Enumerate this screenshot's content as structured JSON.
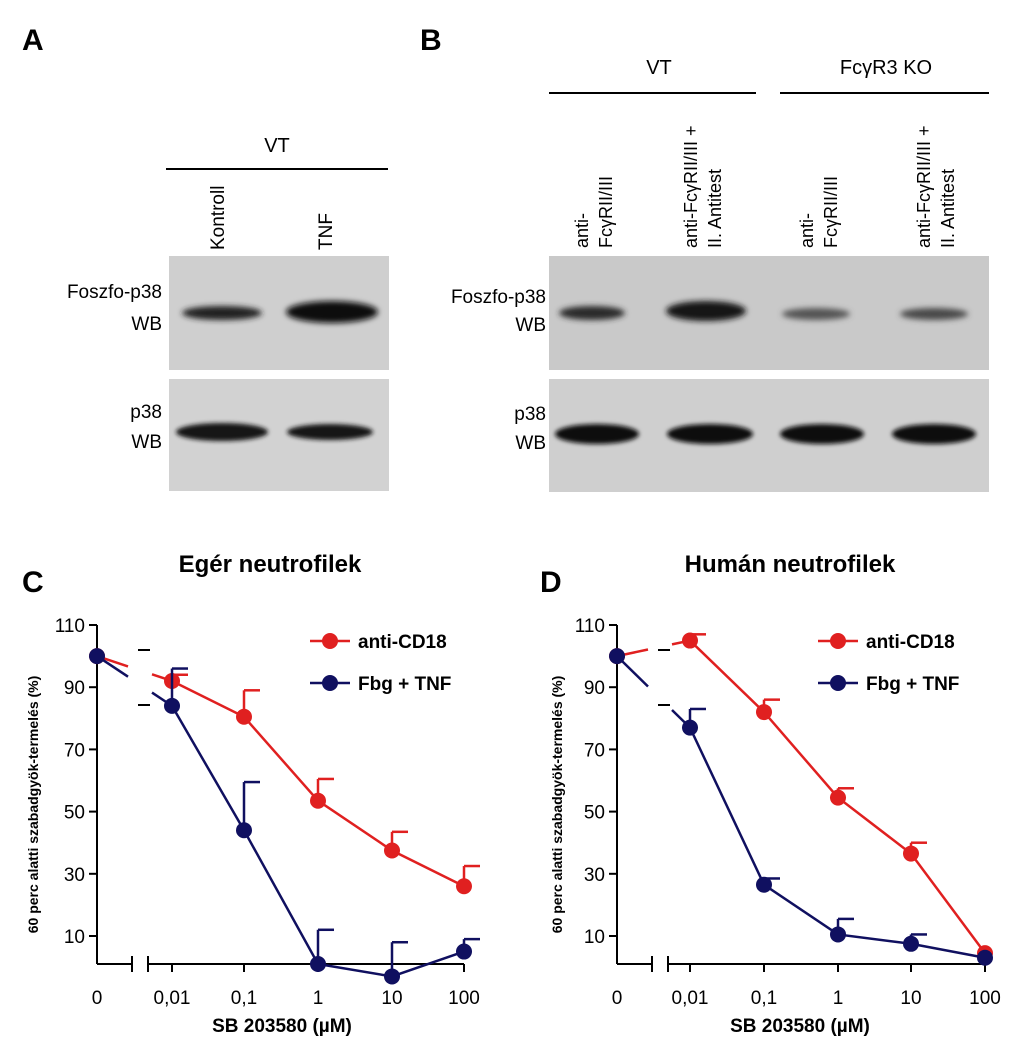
{
  "panels": {
    "A": {
      "letter": "A",
      "group_label": "VT",
      "lane_labels": [
        "Kontroll",
        "TNF"
      ],
      "row_labels": {
        "phospho_line1": "Foszfo-p38",
        "phospho_line2": "WB",
        "total_line1": "p38",
        "total_line2": "WB"
      }
    },
    "B": {
      "letter": "B",
      "group_labels": [
        "VT",
        "FcγR3 KO"
      ],
      "lane_labels": [
        {
          "line1": "anti-",
          "line2": "FcγRII/III"
        },
        {
          "line1": "anti-FcγRII/III +",
          "line2": "II. Antitest"
        },
        {
          "line1": "anti-",
          "line2": "FcγRII/III"
        },
        {
          "line1": "anti-FcγRII/III +",
          "line2": "II. Antitest"
        }
      ],
      "row_labels": {
        "phospho_line1": "Foszfo-p38",
        "phospho_line2": "WB",
        "total_line1": "p38",
        "total_line2": "WB"
      }
    },
    "C": {
      "letter": "C"
    },
    "D": {
      "letter": "D"
    }
  },
  "chart_data": [
    {
      "panel": "C",
      "type": "line",
      "title": "Egér neutrofilek",
      "xlabel": "SB 203580 (µM)",
      "ylabel": "60 perc alatti szabadgyök-termelés (%)",
      "x_tick_labels": [
        "0",
        "0,01",
        "0,1",
        "1",
        "10",
        "100"
      ],
      "y_ticks": [
        10,
        30,
        50,
        70,
        90,
        110
      ],
      "ylim": [
        1,
        110
      ],
      "x_scale": "log with broken axis at 0",
      "legend_position": "top-right",
      "series": [
        {
          "name": "anti-CD18",
          "color": "#e02020",
          "values": [
            100,
            92,
            80.5,
            53.5,
            37.5,
            26
          ],
          "errors": [
            0,
            2,
            8.5,
            7,
            6,
            6.5
          ]
        },
        {
          "name": "Fbg + TNF",
          "color": "#101060",
          "values": [
            100,
            84,
            44,
            1,
            -3,
            5
          ],
          "errors": [
            0,
            12,
            15.5,
            11,
            11,
            4
          ]
        }
      ]
    },
    {
      "panel": "D",
      "type": "line",
      "title": "Humán neutrofilek",
      "xlabel": "SB 203580 (µM)",
      "ylabel": "60 perc alatti szabadgyök-termelés (%)",
      "x_tick_labels": [
        "0",
        "0,01",
        "0,1",
        "1",
        "10",
        "100"
      ],
      "y_ticks": [
        10,
        30,
        50,
        70,
        90,
        110
      ],
      "ylim": [
        1,
        110
      ],
      "x_scale": "log with broken axis at 0",
      "legend_position": "top-right",
      "series": [
        {
          "name": "anti-CD18",
          "color": "#e02020",
          "values": [
            100,
            105,
            82,
            54.5,
            36.5,
            4.5
          ],
          "errors": [
            0,
            2,
            4,
            3,
            3.5,
            0
          ]
        },
        {
          "name": "Fbg + TNF",
          "color": "#101060",
          "values": [
            100,
            77,
            26.5,
            10.5,
            7.5,
            3
          ],
          "errors": [
            0,
            6,
            2,
            5,
            3,
            0
          ]
        }
      ]
    }
  ],
  "colors": {
    "red_series": "#e02020",
    "navy_series": "#101060",
    "blot_bg": "#cfcfcf",
    "band": "#151515"
  }
}
